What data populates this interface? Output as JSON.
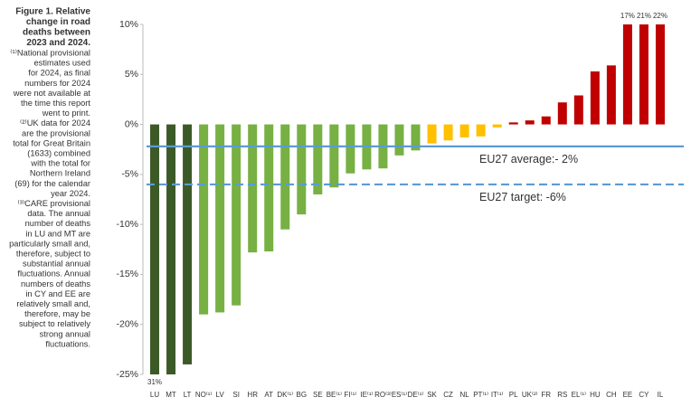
{
  "caption": {
    "title_lines": [
      "Figure 1. Relative",
      "change in road",
      "deaths between",
      "2023 and 2024."
    ],
    "note_lines": [
      "⁽¹⁾National provisional",
      "estimates used",
      "for 2024, as final",
      "numbers for 2024",
      "were not available at",
      "the time this report",
      "went to print.",
      "⁽²⁾UK data for 2024",
      "are the provisional",
      "total for Great Britain",
      "(1633) combined",
      "with the total for",
      "Northern Ireland",
      "(69) for the calendar",
      "year 2024.",
      "⁽³⁾CARE provisional",
      "data. The annual",
      "number of deaths",
      "in LU and MT are",
      "particularly small and,",
      "therefore, subject to",
      "substantial annual",
      "fluctuations. Annual",
      "numbers of deaths",
      "in CY and EE are",
      "relatively small and,",
      "therefore, may be",
      "subject to relatively",
      "strong annual",
      "fluctuations."
    ]
  },
  "chart_data": {
    "type": "bar",
    "categories": [
      "LU",
      "MT",
      "LT",
      "NO⁽¹⁾",
      "LV",
      "SI",
      "HR",
      "AT",
      "DK⁽¹⁾",
      "BG",
      "SE",
      "BE⁽¹⁾",
      "FI⁽¹⁾",
      "IE⁽¹⁾",
      "RO⁽³⁾",
      "ES⁽¹⁾",
      "DE⁽¹⁾",
      "SK",
      "CZ",
      "NL",
      "PT⁽¹⁾",
      "IT⁽¹⁾",
      "PL",
      "UK⁽²⁾",
      "FR",
      "RS",
      "EL⁽¹⁾",
      "HU",
      "CH",
      "EE",
      "CY",
      "IL"
    ],
    "values": [
      -31,
      -25,
      -24,
      -19,
      -18.8,
      -18.1,
      -12.8,
      -12.7,
      -10.5,
      -9,
      -7,
      -6.3,
      -4.9,
      -4.5,
      -4.4,
      -3.1,
      -2.6,
      -1.9,
      -1.6,
      -1.3,
      -1.2,
      -0.3,
      0.2,
      0.4,
      0.8,
      2.2,
      2.9,
      5.3,
      5.9,
      17,
      21,
      22
    ],
    "value_labels": [
      "31%",
      null,
      null,
      null,
      null,
      null,
      null,
      null,
      null,
      null,
      null,
      null,
      null,
      null,
      null,
      null,
      null,
      null,
      null,
      null,
      null,
      null,
      null,
      null,
      null,
      null,
      null,
      null,
      null,
      "17%",
      "21%",
      "22%"
    ],
    "colors": [
      "#3b5a28",
      "#3b5a28",
      "#3b5a28",
      "#77b043",
      "#77b043",
      "#77b043",
      "#77b043",
      "#77b043",
      "#77b043",
      "#77b043",
      "#77b043",
      "#77b043",
      "#77b043",
      "#77b043",
      "#77b043",
      "#77b043",
      "#77b043",
      "#ffc000",
      "#ffc000",
      "#ffc000",
      "#ffc000",
      "#ffc000",
      "#c00000",
      "#c00000",
      "#c00000",
      "#c00000",
      "#c00000",
      "#c00000",
      "#c00000",
      "#c00000",
      "#c00000",
      "#c00000"
    ],
    "ylim": [
      -25,
      10
    ],
    "yticks": [
      {
        "value": -25,
        "label": "-25%"
      },
      {
        "value": -20,
        "label": "-20%"
      },
      {
        "value": -15,
        "label": "-15%"
      },
      {
        "value": -10,
        "label": "-10%"
      },
      {
        "value": -5,
        "label": "-5%"
      },
      {
        "value": 0,
        "label": "0%"
      },
      {
        "value": 5,
        "label": "5%"
      },
      {
        "value": 10,
        "label": "10%"
      }
    ],
    "grid": false,
    "reference_lines": [
      {
        "value": -2.2,
        "label": "EU27 average:- 2%",
        "style": "solid",
        "color": "#5b9bd5"
      },
      {
        "value": -6,
        "label": "EU27 target: -6%",
        "style": "dashed",
        "color": "#5b9bd5"
      }
    ]
  }
}
